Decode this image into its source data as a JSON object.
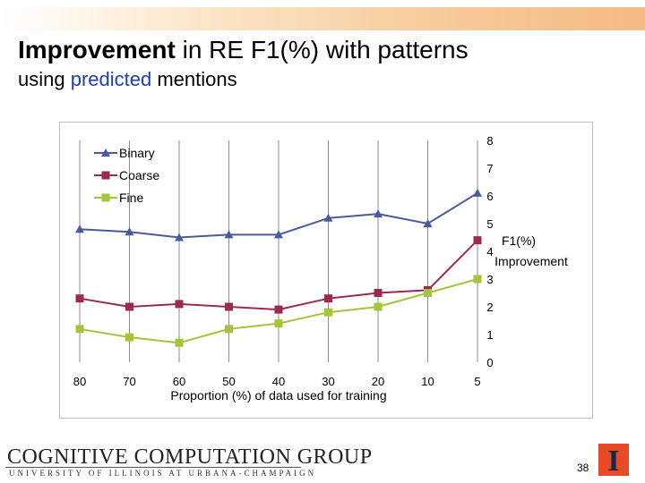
{
  "slide": {
    "title_bold": "Improvement",
    "title_rest": " in RE F1(%) with patterns",
    "subtitle_pre": "using ",
    "subtitle_highlight": "predicted",
    "subtitle_post": " mentions",
    "page_number": "38"
  },
  "footer": {
    "logo_text": "COGNITIVE COMPUTATION GROUP",
    "logo_sub": "UNIVERSITY OF ILLINOIS AT URBANA-CHAMPAIGN",
    "logo_mark": "I"
  },
  "colors": {
    "binary": "#4a5b9b",
    "coarse": "#9b2b4b",
    "fine": "#a4c43a",
    "accent_orange": "#f3bb80",
    "highlight_text": "#1f3fa6",
    "illinois_orange": "#e84a27",
    "illinois_blue": "#13294b"
  },
  "chart_data": {
    "type": "line",
    "x": [
      80,
      70,
      60,
      50,
      40,
      30,
      20,
      10,
      5
    ],
    "x_tick_labels": [
      "80",
      "70",
      "60",
      "50",
      "40",
      "30",
      "20",
      "10",
      "5"
    ],
    "xlabel": "Proportion (%) of data used for training",
    "ylabel": "F1(%) Improvement",
    "ylabel_lines": [
      "F1(%)",
      "Improvement"
    ],
    "y_axis_side": "right",
    "ylim": [
      0,
      8
    ],
    "y_ticks": [
      0,
      1,
      2,
      3,
      4,
      5,
      6,
      7,
      8
    ],
    "grid": "vertical",
    "legend_position": "top-left",
    "series": [
      {
        "name": "Binary",
        "marker": "triangle",
        "values": [
          4.8,
          4.7,
          4.5,
          4.6,
          4.6,
          5.2,
          5.35,
          5.0,
          6.1
        ]
      },
      {
        "name": "Coarse",
        "marker": "square",
        "values": [
          2.3,
          2.0,
          2.1,
          2.0,
          1.9,
          2.3,
          2.5,
          2.6,
          4.4
        ]
      },
      {
        "name": "Fine",
        "marker": "square",
        "values": [
          1.2,
          0.9,
          0.7,
          1.2,
          1.4,
          1.8,
          2.0,
          2.5,
          3.0
        ]
      }
    ]
  }
}
